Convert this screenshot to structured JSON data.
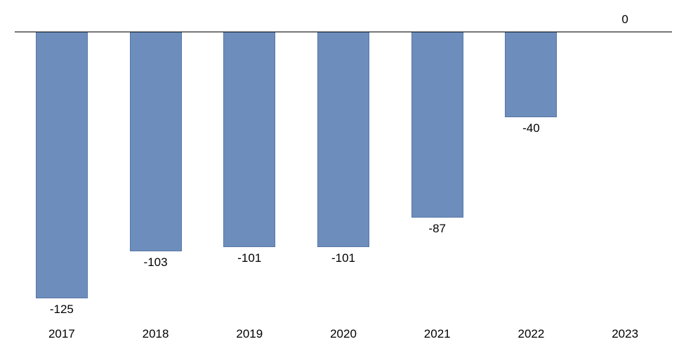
{
  "chart_data": {
    "type": "bar",
    "title": "",
    "xlabel": "",
    "ylabel": "",
    "categories": [
      "2017",
      "2018",
      "2019",
      "2020",
      "2021",
      "2022",
      "2023"
    ],
    "values": [
      -125,
      -103,
      -101,
      -101,
      -87,
      -40,
      0
    ],
    "data_labels": [
      "-125",
      "-103",
      "-101",
      "-101",
      "-87",
      "-40",
      "0"
    ],
    "ylim": [
      -140,
      0
    ],
    "grid": false,
    "legend": false,
    "bar_color": "#6D8EBC",
    "bar_border_color": "#54749E",
    "axis_color": "#000000",
    "label_color": "#000000",
    "background_color": "#FFFFFF"
  }
}
